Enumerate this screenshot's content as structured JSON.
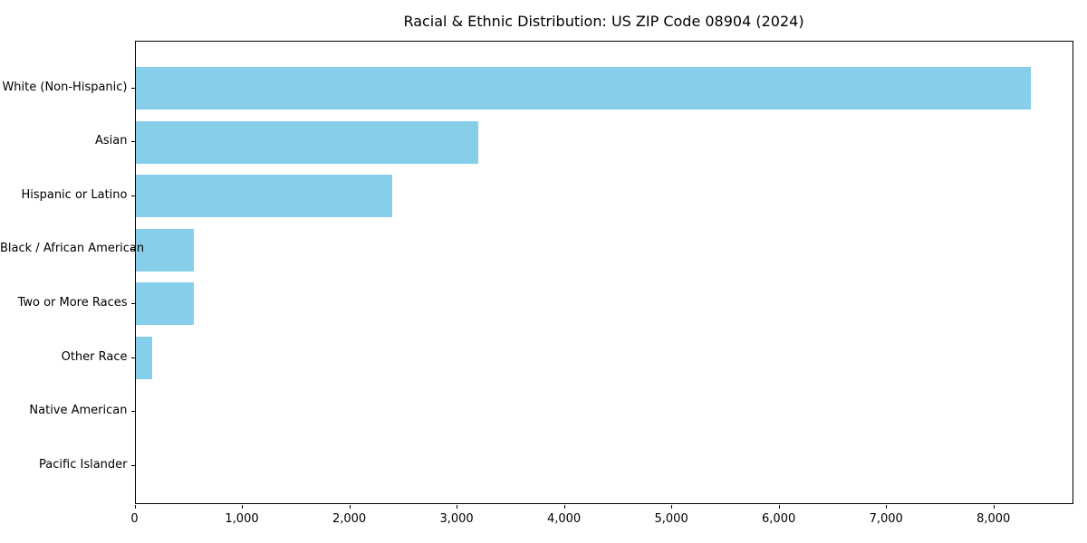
{
  "chart_data": {
    "type": "bar",
    "orientation": "horizontal",
    "title": "Racial & Ethnic Distribution: US ZIP Code 08904 (2024)",
    "categories": [
      "White (Non-Hispanic)",
      "Asian",
      "Hispanic or Latino",
      "Black / African American",
      "Two or More Races",
      "Other Race",
      "Native American",
      "Pacific Islander"
    ],
    "values": [
      8340,
      3190,
      2390,
      540,
      540,
      155,
      0,
      0
    ],
    "xlabel": "",
    "ylabel": "",
    "xlim": [
      0,
      8745
    ],
    "xticks": {
      "values": [
        0,
        1000,
        2000,
        3000,
        4000,
        5000,
        6000,
        7000,
        8000
      ],
      "labels": [
        "0",
        "1,000",
        "2,000",
        "3,000",
        "4,000",
        "5,000",
        "6,000",
        "7,000",
        "8,000"
      ]
    },
    "grid": false,
    "legend": null,
    "bar_color": "#87CEEB",
    "axis_color": "#000000",
    "text_color": "#000000",
    "background_color": "#ffffff"
  }
}
